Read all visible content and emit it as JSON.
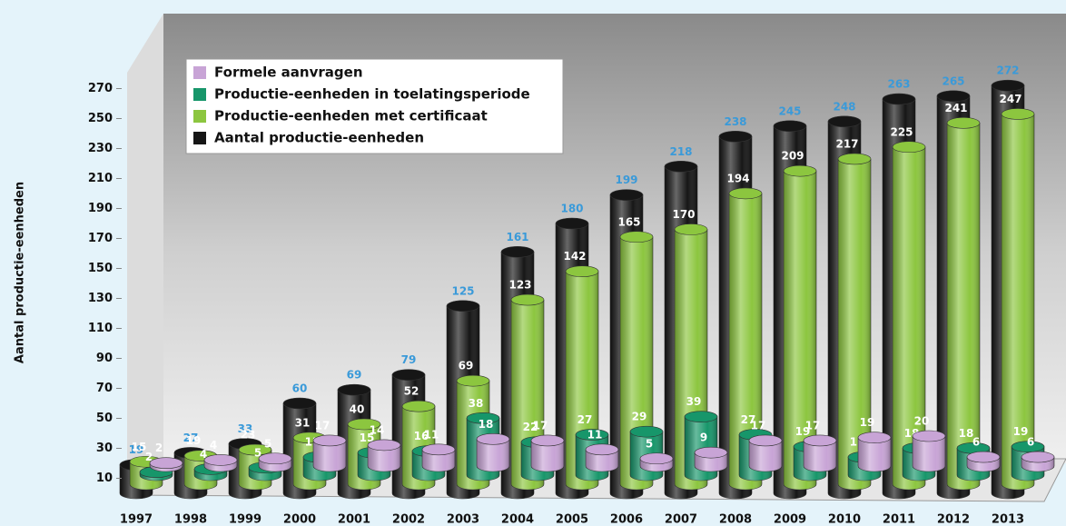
{
  "chart_data": {
    "type": "cylinder-bar",
    "y_label": "Aantal productie-eenheden",
    "categories": [
      "1997",
      "1998",
      "1999",
      "2000",
      "2001",
      "2002",
      "2003",
      "2004",
      "2005",
      "2006",
      "2007",
      "2008",
      "2009",
      "2010",
      "2011",
      "2012",
      "2013"
    ],
    "series": [
      {
        "name": "Formele aanvragen",
        "color": "#c8a4d6",
        "values": [
          2,
          4,
          5,
          17,
          14,
          11,
          18,
          17,
          11,
          5,
          9,
          17,
          17,
          19,
          20,
          6,
          6
        ]
      },
      {
        "name": "Productie-eenheden in toelatingsperiode",
        "color": "#17966a",
        "values": [
          2,
          4,
          5,
          12,
          15,
          16,
          38,
          22,
          27,
          29,
          39,
          27,
          19,
          12,
          18,
          18,
          19
        ]
      },
      {
        "name": "Productie-eenheden met certificaat",
        "color": "#8cc63f",
        "values": [
          15,
          19,
          23,
          31,
          40,
          52,
          69,
          123,
          142,
          165,
          170,
          194,
          209,
          217,
          225,
          241,
          247
        ]
      },
      {
        "name": "Aantal productie-eenheden",
        "color": "#161616",
        "values": [
          19,
          27,
          33,
          60,
          69,
          79,
          125,
          161,
          180,
          199,
          218,
          238,
          245,
          248,
          263,
          265,
          272
        ]
      }
    ],
    "ylim": [
      0,
      280
    ],
    "yticks": [
      10,
      30,
      50,
      70,
      90,
      110,
      130,
      150,
      170,
      190,
      210,
      230,
      250,
      270
    ]
  }
}
